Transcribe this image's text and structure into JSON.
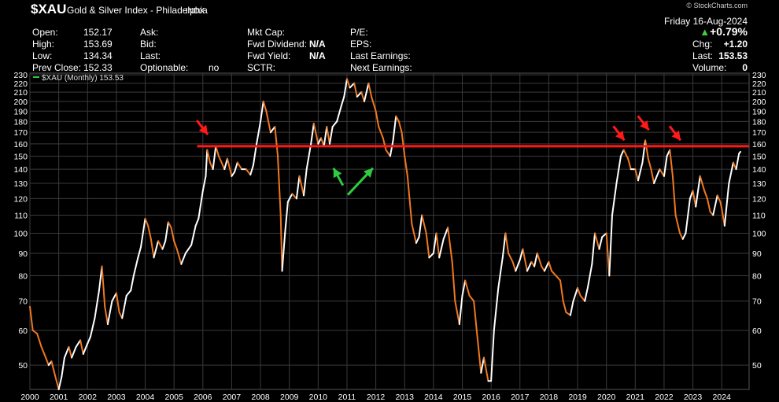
{
  "header": {
    "symbol": "$XAU",
    "name": "Gold & Silver Index - Philadelphia",
    "exchange": "INDX",
    "watermark": "© StockCharts.com",
    "date": "Friday 16-Aug-2024",
    "pct_change": "+0.79%",
    "stats": {
      "open_label": "Open:",
      "open": "152.17",
      "high_label": "High:",
      "high": "153.69",
      "low_label": "Low:",
      "low": "134.34",
      "prev_label": "Prev Close:",
      "prev": "152.33",
      "ask_label": "Ask:",
      "bid_label": "Bid:",
      "last_label": "Last:",
      "optionable_label": "Optionable:",
      "optionable": "no",
      "mktcap_label": "Mkt Cap:",
      "fwddiv_label": "Fwd Dividend:",
      "fwddiv": "N/A",
      "fwdyield_label": "Fwd Yield:",
      "fwdyield": "N/A",
      "sctr_label": "SCTR:",
      "pe_label": "P/E:",
      "eps_label": "EPS:",
      "lastearn_label": "Last Earnings:",
      "nextearn_label": "Next Earnings:",
      "chg_label": "Chg:",
      "chg": "+1.20",
      "lastpx_label": "Last:",
      "lastpx": "153.53",
      "vol_label": "Volume:",
      "vol": "0"
    }
  },
  "chart_data": {
    "type": "line",
    "legend": "$XAU (Monthly) 153.53",
    "scale": "log",
    "ylim": [
      44,
      232
    ],
    "xlim": [
      2000.0,
      2024.95
    ],
    "yticks": [
      50,
      60,
      70,
      80,
      90,
      100,
      110,
      120,
      130,
      140,
      150,
      160,
      170,
      180,
      190,
      200,
      210,
      220,
      230
    ],
    "xticks": [
      "2000",
      "2001",
      "2002",
      "2003",
      "2004",
      "2005",
      "2006",
      "2007",
      "2008",
      "2009",
      "2010",
      "2011",
      "2012",
      "2013",
      "2014",
      "2015",
      "2016",
      "2017",
      "2018",
      "2019",
      "2020",
      "2021",
      "2022",
      "2023",
      "2024"
    ],
    "grid": true,
    "up_color": "#ffffff",
    "down_color": "#f07820",
    "series": [
      {
        "values": [
          [
            2000.0,
            68
          ],
          [
            2000.1,
            60
          ],
          [
            2000.25,
            59
          ],
          [
            2000.4,
            55
          ],
          [
            2000.55,
            52
          ],
          [
            2000.65,
            50
          ],
          [
            2000.75,
            51
          ],
          [
            2000.85,
            48
          ],
          [
            2001.0,
            44
          ],
          [
            2001.1,
            47
          ],
          [
            2001.2,
            52
          ],
          [
            2001.35,
            55
          ],
          [
            2001.45,
            52
          ],
          [
            2001.6,
            55
          ],
          [
            2001.75,
            57
          ],
          [
            2001.85,
            53
          ],
          [
            2002.0,
            56
          ],
          [
            2002.1,
            58
          ],
          [
            2002.25,
            64
          ],
          [
            2002.4,
            74
          ],
          [
            2002.5,
            84
          ],
          [
            2002.6,
            68
          ],
          [
            2002.7,
            62
          ],
          [
            2002.85,
            70
          ],
          [
            2003.0,
            73
          ],
          [
            2003.1,
            66
          ],
          [
            2003.2,
            64
          ],
          [
            2003.35,
            72
          ],
          [
            2003.5,
            74
          ],
          [
            2003.6,
            80
          ],
          [
            2003.75,
            88
          ],
          [
            2003.85,
            93
          ],
          [
            2004.0,
            108
          ],
          [
            2004.1,
            104
          ],
          [
            2004.2,
            97
          ],
          [
            2004.3,
            88
          ],
          [
            2004.45,
            96
          ],
          [
            2004.6,
            92
          ],
          [
            2004.7,
            96
          ],
          [
            2004.8,
            106
          ],
          [
            2004.9,
            103
          ],
          [
            2005.0,
            96
          ],
          [
            2005.1,
            92
          ],
          [
            2005.25,
            85
          ],
          [
            2005.4,
            90
          ],
          [
            2005.5,
            92
          ],
          [
            2005.6,
            94
          ],
          [
            2005.75,
            104
          ],
          [
            2005.85,
            108
          ],
          [
            2006.0,
            125
          ],
          [
            2006.1,
            135
          ],
          [
            2006.15,
            155
          ],
          [
            2006.25,
            145
          ],
          [
            2006.35,
            140
          ],
          [
            2006.45,
            158
          ],
          [
            2006.55,
            150
          ],
          [
            2006.65,
            145
          ],
          [
            2006.75,
            140
          ],
          [
            2006.85,
            148
          ],
          [
            2007.0,
            135
          ],
          [
            2007.1,
            138
          ],
          [
            2007.2,
            145
          ],
          [
            2007.35,
            140
          ],
          [
            2007.5,
            140
          ],
          [
            2007.65,
            136
          ],
          [
            2007.75,
            143
          ],
          [
            2007.85,
            158
          ],
          [
            2008.0,
            180
          ],
          [
            2008.1,
            200
          ],
          [
            2008.2,
            190
          ],
          [
            2008.35,
            170
          ],
          [
            2008.5,
            175
          ],
          [
            2008.6,
            150
          ],
          [
            2008.7,
            110
          ],
          [
            2008.75,
            82
          ],
          [
            2008.85,
            100
          ],
          [
            2008.95,
            118
          ],
          [
            2009.1,
            123
          ],
          [
            2009.25,
            120
          ],
          [
            2009.35,
            135
          ],
          [
            2009.5,
            122
          ],
          [
            2009.6,
            140
          ],
          [
            2009.75,
            160
          ],
          [
            2009.85,
            178
          ],
          [
            2010.0,
            160
          ],
          [
            2010.1,
            165
          ],
          [
            2010.2,
            158
          ],
          [
            2010.3,
            175
          ],
          [
            2010.4,
            160
          ],
          [
            2010.5,
            175
          ],
          [
            2010.65,
            180
          ],
          [
            2010.8,
            195
          ],
          [
            2010.9,
            205
          ],
          [
            2011.0,
            225
          ],
          [
            2011.1,
            215
          ],
          [
            2011.25,
            220
          ],
          [
            2011.35,
            205
          ],
          [
            2011.5,
            210
          ],
          [
            2011.6,
            200
          ],
          [
            2011.75,
            220
          ],
          [
            2011.85,
            205
          ],
          [
            2012.0,
            190
          ],
          [
            2012.1,
            175
          ],
          [
            2012.25,
            165
          ],
          [
            2012.35,
            155
          ],
          [
            2012.5,
            150
          ],
          [
            2012.6,
            163
          ],
          [
            2012.7,
            185
          ],
          [
            2012.8,
            180
          ],
          [
            2012.9,
            170
          ],
          [
            2013.0,
            150
          ],
          [
            2013.1,
            135
          ],
          [
            2013.25,
            105
          ],
          [
            2013.4,
            95
          ],
          [
            2013.5,
            98
          ],
          [
            2013.6,
            110
          ],
          [
            2013.75,
            100
          ],
          [
            2013.85,
            88
          ],
          [
            2014.0,
            90
          ],
          [
            2014.1,
            100
          ],
          [
            2014.2,
            88
          ],
          [
            2014.35,
            97
          ],
          [
            2014.5,
            103
          ],
          [
            2014.65,
            86
          ],
          [
            2014.75,
            70
          ],
          [
            2014.9,
            62
          ],
          [
            2015.0,
            72
          ],
          [
            2015.1,
            78
          ],
          [
            2015.25,
            72
          ],
          [
            2015.4,
            70
          ],
          [
            2015.5,
            60
          ],
          [
            2015.65,
            48
          ],
          [
            2015.75,
            52
          ],
          [
            2015.9,
            46
          ],
          [
            2016.0,
            46
          ],
          [
            2016.1,
            60
          ],
          [
            2016.25,
            75
          ],
          [
            2016.4,
            88
          ],
          [
            2016.5,
            100
          ],
          [
            2016.6,
            90
          ],
          [
            2016.75,
            86
          ],
          [
            2016.85,
            82
          ],
          [
            2017.0,
            87
          ],
          [
            2017.1,
            92
          ],
          [
            2017.25,
            82
          ],
          [
            2017.4,
            86
          ],
          [
            2017.5,
            84
          ],
          [
            2017.6,
            90
          ],
          [
            2017.75,
            84
          ],
          [
            2017.85,
            82
          ],
          [
            2018.0,
            86
          ],
          [
            2018.1,
            82
          ],
          [
            2018.25,
            80
          ],
          [
            2018.4,
            78
          ],
          [
            2018.5,
            70
          ],
          [
            2018.6,
            66
          ],
          [
            2018.75,
            65
          ],
          [
            2018.85,
            70
          ],
          [
            2019.0,
            75
          ],
          [
            2019.1,
            72
          ],
          [
            2019.25,
            70
          ],
          [
            2019.35,
            75
          ],
          [
            2019.5,
            85
          ],
          [
            2019.6,
            100
          ],
          [
            2019.75,
            92
          ],
          [
            2019.85,
            98
          ],
          [
            2020.0,
            100
          ],
          [
            2020.1,
            80
          ],
          [
            2020.2,
            110
          ],
          [
            2020.35,
            130
          ],
          [
            2020.5,
            150
          ],
          [
            2020.6,
            155
          ],
          [
            2020.75,
            148
          ],
          [
            2020.85,
            140
          ],
          [
            2021.0,
            140
          ],
          [
            2021.1,
            132
          ],
          [
            2021.25,
            145
          ],
          [
            2021.35,
            163
          ],
          [
            2021.45,
            148
          ],
          [
            2021.55,
            140
          ],
          [
            2021.65,
            130
          ],
          [
            2021.75,
            135
          ],
          [
            2021.85,
            140
          ],
          [
            2022.0,
            135
          ],
          [
            2022.1,
            150
          ],
          [
            2022.2,
            155
          ],
          [
            2022.3,
            135
          ],
          [
            2022.4,
            110
          ],
          [
            2022.55,
            100
          ],
          [
            2022.65,
            97
          ],
          [
            2022.75,
            100
          ],
          [
            2022.9,
            120
          ],
          [
            2023.0,
            125
          ],
          [
            2023.1,
            115
          ],
          [
            2023.25,
            135
          ],
          [
            2023.4,
            125
          ],
          [
            2023.5,
            120
          ],
          [
            2023.6,
            112
          ],
          [
            2023.7,
            110
          ],
          [
            2023.85,
            122
          ],
          [
            2023.95,
            118
          ],
          [
            2024.0,
            114
          ],
          [
            2024.1,
            104
          ],
          [
            2024.25,
            130
          ],
          [
            2024.4,
            145
          ],
          [
            2024.5,
            140
          ],
          [
            2024.6,
            152
          ],
          [
            2024.65,
            153.5
          ]
        ]
      }
    ],
    "annotations": {
      "resistance_level": 158,
      "resistance_color": "#ff1a1a",
      "red_arrows": [
        [
          2005.9,
          168
        ],
        [
          2020.35,
          163
        ],
        [
          2021.2,
          172
        ],
        [
          2022.3,
          163
        ]
      ],
      "green_arrows": [
        [
          2010.75,
          148
        ],
        [
          2011.9,
          148
        ]
      ]
    }
  }
}
